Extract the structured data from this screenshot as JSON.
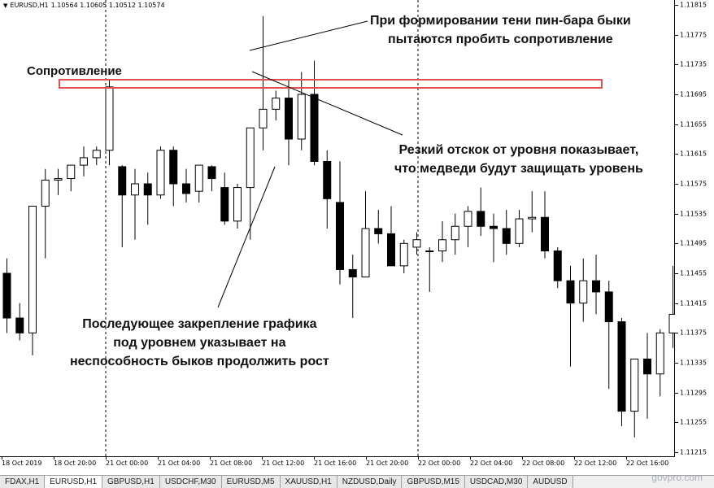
{
  "window": {
    "symbol_title": "EURUSD,H1",
    "ohlc": "1.10564 1.10605 1.10512 1.10574"
  },
  "price_axis": {
    "labels": [
      "1.11815",
      "1.11775",
      "1.11735",
      "1.11695",
      "1.11655",
      "1.11615",
      "1.11575",
      "1.11535",
      "1.11495",
      "1.11455",
      "1.11415",
      "1.11375",
      "1.11335",
      "1.11295",
      "1.11255",
      "1.11215"
    ]
  },
  "time_axis": {
    "labels": [
      "18 Oct 2019",
      "18 Oct 20:00",
      "21 Oct 00:00",
      "21 Oct 04:00",
      "21 Oct 08:00",
      "21 Oct 12:00",
      "21 Oct 16:00",
      "21 Oct 20:00",
      "22 Oct 00:00",
      "22 Oct 04:00",
      "22 Oct 08:00",
      "22 Oct 12:00",
      "22 Oct 16:00"
    ]
  },
  "annotations": {
    "resistance": "Сопротивление",
    "pinbar_line1": "При формировании тени пин-бара быки",
    "pinbar_line2": "пытаются пробить сопротивление",
    "rebound_line1": "Резкий отскок от уровня показывает,",
    "rebound_line2": "что медведи будут защищать уровень",
    "consolidation_line1": "Последующее закрепление графика",
    "consolidation_line2": "под уровнем указывает на",
    "consolidation_line3": "неспособность быков продолжить рост"
  },
  "tabs": [
    {
      "label": "FDAX,H1",
      "active": false
    },
    {
      "label": "EURUSD,H1",
      "active": true
    },
    {
      "label": "GBPUSD,H1",
      "active": false
    },
    {
      "label": "USDCHF,M30",
      "active": false
    },
    {
      "label": "EURUSD,M5",
      "active": false
    },
    {
      "label": "XAUUSD,H1",
      "active": false
    },
    {
      "label": "NZDUSD,Daily",
      "active": false
    },
    {
      "label": "GBPUSD,M15",
      "active": false
    },
    {
      "label": "USDCAD,M30",
      "active": false
    },
    {
      "label": "AUDUSD",
      "active": false
    }
  ],
  "watermark": "govpro.com",
  "colors": {
    "resistance_line": "#e05050",
    "candle_up_fill": "#ffffff",
    "candle_down_fill": "#000000"
  },
  "chart_data": {
    "type": "candlestick",
    "yscale": {
      "min": 1.11215,
      "max": 1.11815
    },
    "candles": [
      {
        "o": 1.11455,
        "h": 1.11475,
        "l": 1.11375,
        "c": 1.11395
      },
      {
        "o": 1.11395,
        "h": 1.11415,
        "l": 1.11365,
        "c": 1.11375
      },
      {
        "o": 1.11375,
        "h": 1.11545,
        "l": 1.11345,
        "c": 1.11545
      },
      {
        "o": 1.11545,
        "h": 1.11595,
        "l": 1.11475,
        "c": 1.1158
      },
      {
        "o": 1.1158,
        "h": 1.11595,
        "l": 1.1156,
        "c": 1.11582
      },
      {
        "o": 1.11582,
        "h": 1.116,
        "l": 1.11565,
        "c": 1.116
      },
      {
        "o": 1.116,
        "h": 1.11625,
        "l": 1.11585,
        "c": 1.1161
      },
      {
        "o": 1.1161,
        "h": 1.11625,
        "l": 1.116,
        "c": 1.1162
      },
      {
        "o": 1.1162,
        "h": 1.11715,
        "l": 1.116,
        "c": 1.11705
      },
      {
        "o": 1.11598,
        "h": 1.116,
        "l": 1.1149,
        "c": 1.1156
      },
      {
        "o": 1.1156,
        "h": 1.11595,
        "l": 1.115,
        "c": 1.11575
      },
      {
        "o": 1.11575,
        "h": 1.1159,
        "l": 1.1152,
        "c": 1.1156
      },
      {
        "o": 1.1156,
        "h": 1.11625,
        "l": 1.11555,
        "c": 1.1162
      },
      {
        "o": 1.1162,
        "h": 1.11625,
        "l": 1.11545,
        "c": 1.11575
      },
      {
        "o": 1.11575,
        "h": 1.11595,
        "l": 1.1155,
        "c": 1.11562
      },
      {
        "o": 1.11565,
        "h": 1.116,
        "l": 1.1155,
        "c": 1.116
      },
      {
        "o": 1.11598,
        "h": 1.116,
        "l": 1.11565,
        "c": 1.11582
      },
      {
        "o": 1.1157,
        "h": 1.1159,
        "l": 1.1152,
        "c": 1.11525
      },
      {
        "o": 1.11525,
        "h": 1.11575,
        "l": 1.11515,
        "c": 1.1157
      },
      {
        "o": 1.1157,
        "h": 1.1165,
        "l": 1.115,
        "c": 1.1165
      },
      {
        "o": 1.1165,
        "h": 1.118,
        "l": 1.1162,
        "c": 1.11675
      },
      {
        "o": 1.11675,
        "h": 1.117,
        "l": 1.1166,
        "c": 1.1169
      },
      {
        "o": 1.1169,
        "h": 1.11715,
        "l": 1.116,
        "c": 1.11635
      },
      {
        "o": 1.11635,
        "h": 1.11725,
        "l": 1.1162,
        "c": 1.11695
      },
      {
        "o": 1.11695,
        "h": 1.1174,
        "l": 1.116,
        "c": 1.11605
      },
      {
        "o": 1.11605,
        "h": 1.1162,
        "l": 1.11515,
        "c": 1.11555
      },
      {
        "o": 1.1155,
        "h": 1.11605,
        "l": 1.1144,
        "c": 1.1146
      },
      {
        "o": 1.1146,
        "h": 1.1148,
        "l": 1.11395,
        "c": 1.1145
      },
      {
        "o": 1.1145,
        "h": 1.11565,
        "l": 1.1145,
        "c": 1.11515
      },
      {
        "o": 1.11515,
        "h": 1.1154,
        "l": 1.11495,
        "c": 1.11508
      },
      {
        "o": 1.11508,
        "h": 1.11545,
        "l": 1.11465,
        "c": 1.11465
      },
      {
        "o": 1.11465,
        "h": 1.115,
        "l": 1.11455,
        "c": 1.11495
      },
      {
        "o": 1.1149,
        "h": 1.1151,
        "l": 1.1148,
        "c": 1.115
      },
      {
        "o": 1.11485,
        "h": 1.1149,
        "l": 1.1143,
        "c": 1.11485
      },
      {
        "o": 1.11485,
        "h": 1.11525,
        "l": 1.1147,
        "c": 1.115
      },
      {
        "o": 1.115,
        "h": 1.11535,
        "l": 1.1148,
        "c": 1.11518
      },
      {
        "o": 1.11518,
        "h": 1.11545,
        "l": 1.1149,
        "c": 1.11538
      },
      {
        "o": 1.11538,
        "h": 1.1157,
        "l": 1.11505,
        "c": 1.11518
      },
      {
        "o": 1.11518,
        "h": 1.11535,
        "l": 1.1147,
        "c": 1.11515
      },
      {
        "o": 1.11515,
        "h": 1.1154,
        "l": 1.1148,
        "c": 1.11495
      },
      {
        "o": 1.11495,
        "h": 1.1154,
        "l": 1.1149,
        "c": 1.11528
      },
      {
        "o": 1.11528,
        "h": 1.11565,
        "l": 1.1151,
        "c": 1.1153
      },
      {
        "o": 1.1153,
        "h": 1.11565,
        "l": 1.11475,
        "c": 1.11485
      },
      {
        "o": 1.11485,
        "h": 1.1149,
        "l": 1.11435,
        "c": 1.11445
      },
      {
        "o": 1.11445,
        "h": 1.11465,
        "l": 1.1133,
        "c": 1.11415
      },
      {
        "o": 1.11415,
        "h": 1.11475,
        "l": 1.1139,
        "c": 1.11445
      },
      {
        "o": 1.11445,
        "h": 1.1148,
        "l": 1.114,
        "c": 1.1143
      },
      {
        "o": 1.1143,
        "h": 1.11445,
        "l": 1.113,
        "c": 1.1139
      },
      {
        "o": 1.1139,
        "h": 1.11395,
        "l": 1.1125,
        "c": 1.1127
      },
      {
        "o": 1.1127,
        "h": 1.1134,
        "l": 1.11235,
        "c": 1.1134
      },
      {
        "o": 1.1134,
        "h": 1.11375,
        "l": 1.1126,
        "c": 1.1132
      },
      {
        "o": 1.1132,
        "h": 1.1138,
        "l": 1.1129,
        "c": 1.11375
      },
      {
        "o": 1.11375,
        "h": 1.11465,
        "l": 1.11355,
        "c": 1.114
      }
    ]
  }
}
